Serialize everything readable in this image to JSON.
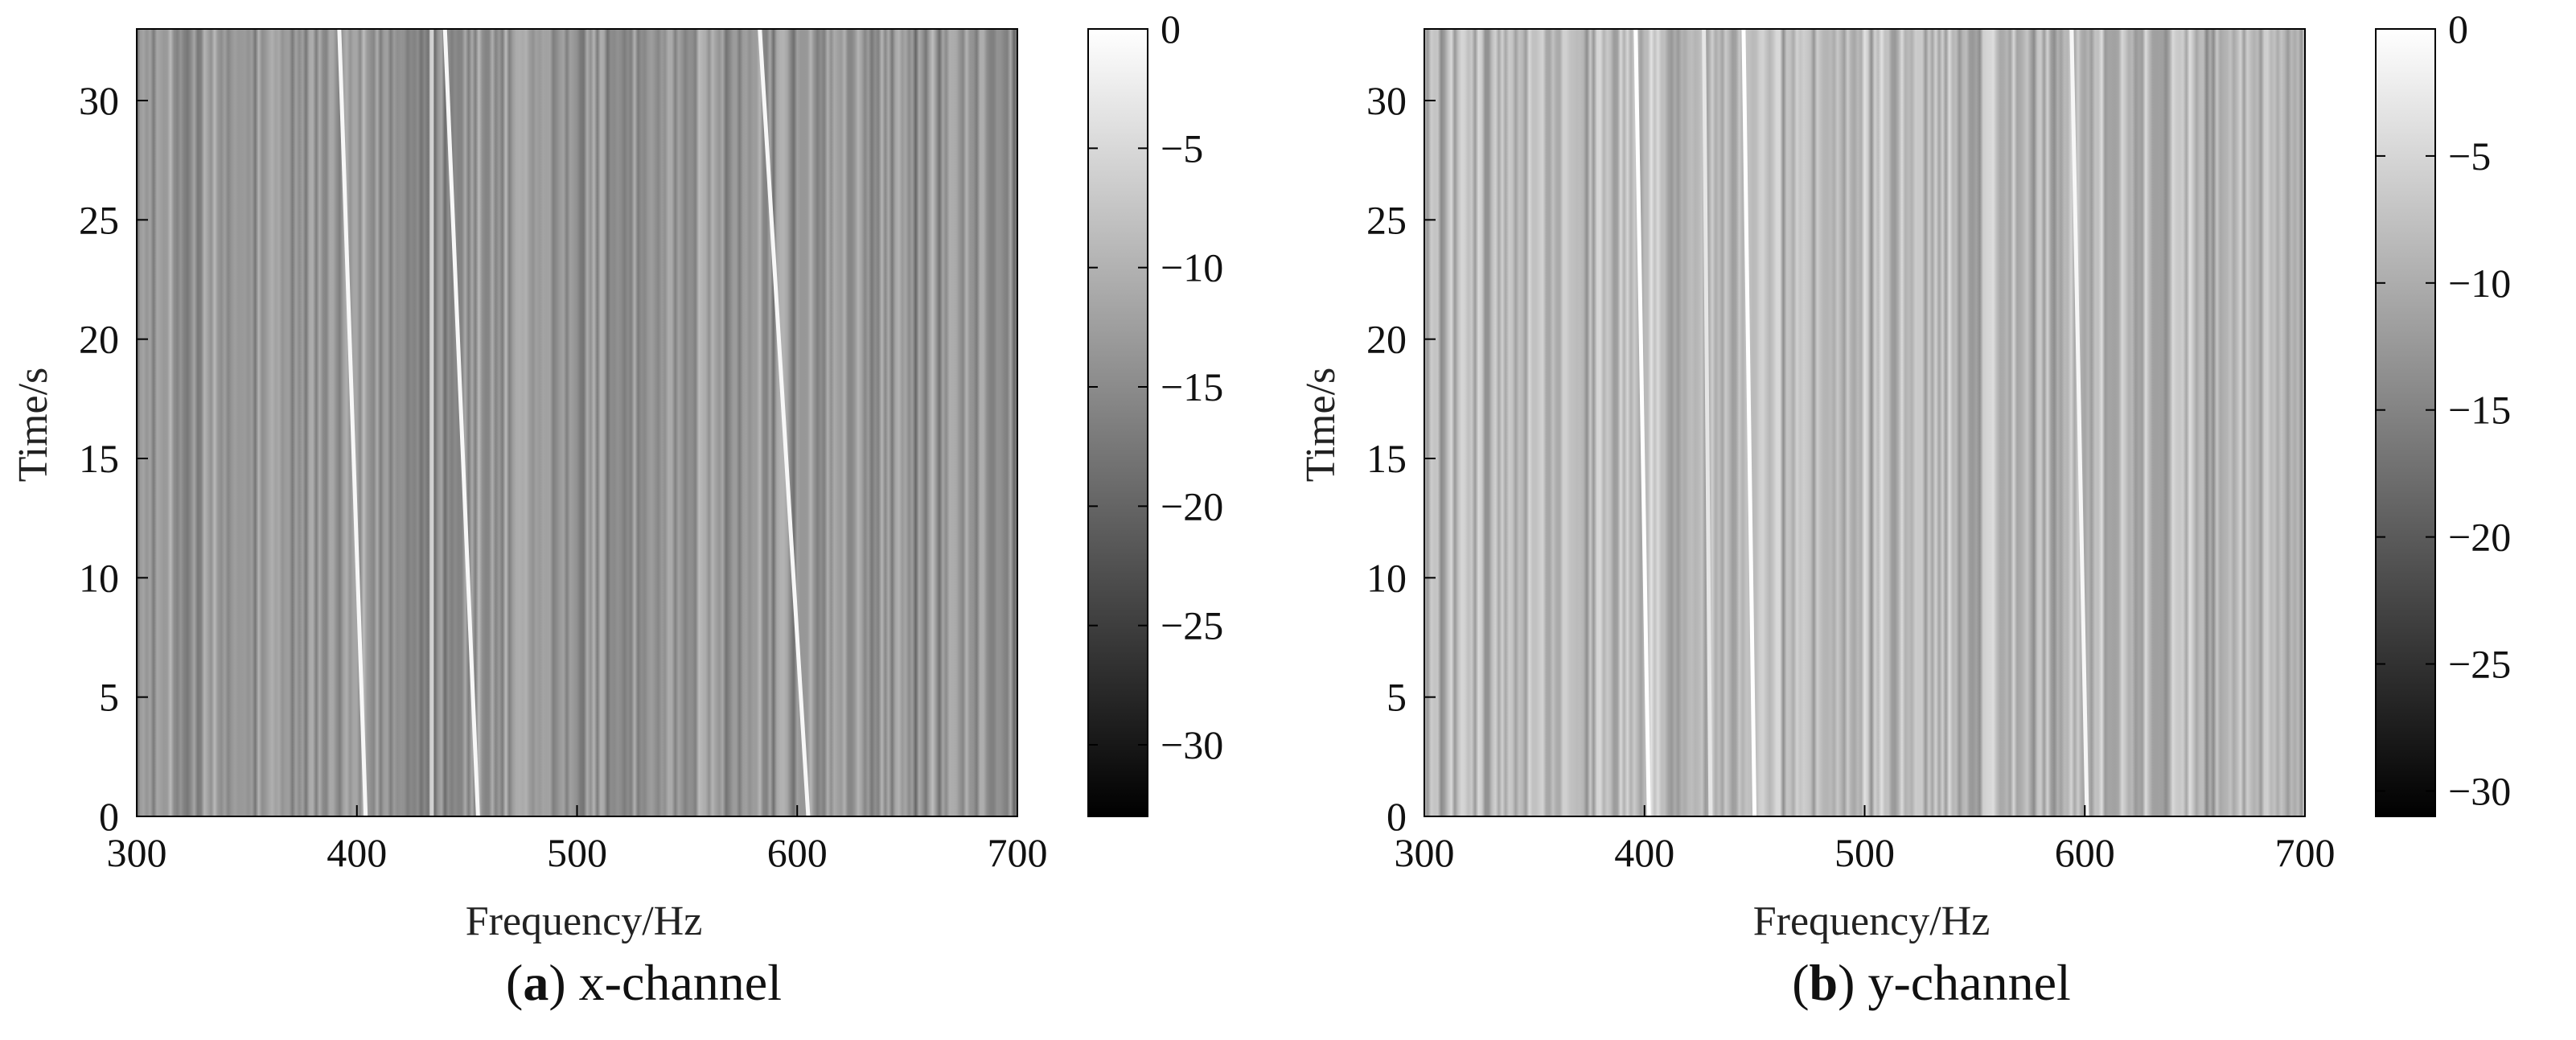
{
  "chart_data": [
    {
      "type": "heatmap",
      "panel_label": "a",
      "caption_text": "x-channel",
      "title": "",
      "xlabel": "Frequency/Hz",
      "ylabel": "Time/s",
      "xlim": [
        300,
        700
      ],
      "ylim": [
        0,
        33
      ],
      "x_ticks": [
        300,
        400,
        500,
        600,
        700
      ],
      "y_ticks": [
        0,
        5,
        10,
        15,
        20,
        25,
        30
      ],
      "colormap": "gray",
      "colorbar": {
        "min": -33,
        "max": 0,
        "ticks": [
          0,
          -5,
          -10,
          -15,
          -20,
          -25,
          -30
        ],
        "tick_labels": [
          "0",
          "−5",
          "−10",
          "−15",
          "−20",
          "−25",
          "−30"
        ]
      },
      "background_level_db": -14,
      "bright_lines": [
        {
          "freq_top": 434,
          "freq_bottom": 434,
          "level_db": -6
        },
        {
          "freq_top": 392,
          "freq_bottom": 404,
          "level_db": -1
        },
        {
          "freq_top": 440,
          "freq_bottom": 455,
          "level_db": -1
        },
        {
          "freq_top": 583,
          "freq_bottom": 605,
          "level_db": -1
        }
      ]
    },
    {
      "type": "heatmap",
      "panel_label": "b",
      "caption_text": "y-channel",
      "title": "",
      "xlabel": "Frequency/Hz",
      "ylabel": "Time/s",
      "xlim": [
        300,
        700
      ],
      "ylim": [
        0,
        33
      ],
      "x_ticks": [
        300,
        400,
        500,
        600,
        700
      ],
      "y_ticks": [
        0,
        5,
        10,
        15,
        20,
        25,
        30
      ],
      "colormap": "gray",
      "colorbar": {
        "min": -31,
        "max": 0,
        "ticks": [
          0,
          -5,
          -10,
          -15,
          -20,
          -25,
          -30
        ],
        "tick_labels": [
          "0",
          "−5",
          "−10",
          "−15",
          "−20",
          "−25",
          "−30"
        ]
      },
      "background_level_db": -9,
      "bright_lines": [
        {
          "freq_top": 396,
          "freq_bottom": 402,
          "level_db": 0
        },
        {
          "freq_top": 427,
          "freq_bottom": 430,
          "level_db": -3
        },
        {
          "freq_top": 445,
          "freq_bottom": 450,
          "level_db": 0
        },
        {
          "freq_top": 594,
          "freq_bottom": 601,
          "level_db": -1
        }
      ]
    }
  ]
}
